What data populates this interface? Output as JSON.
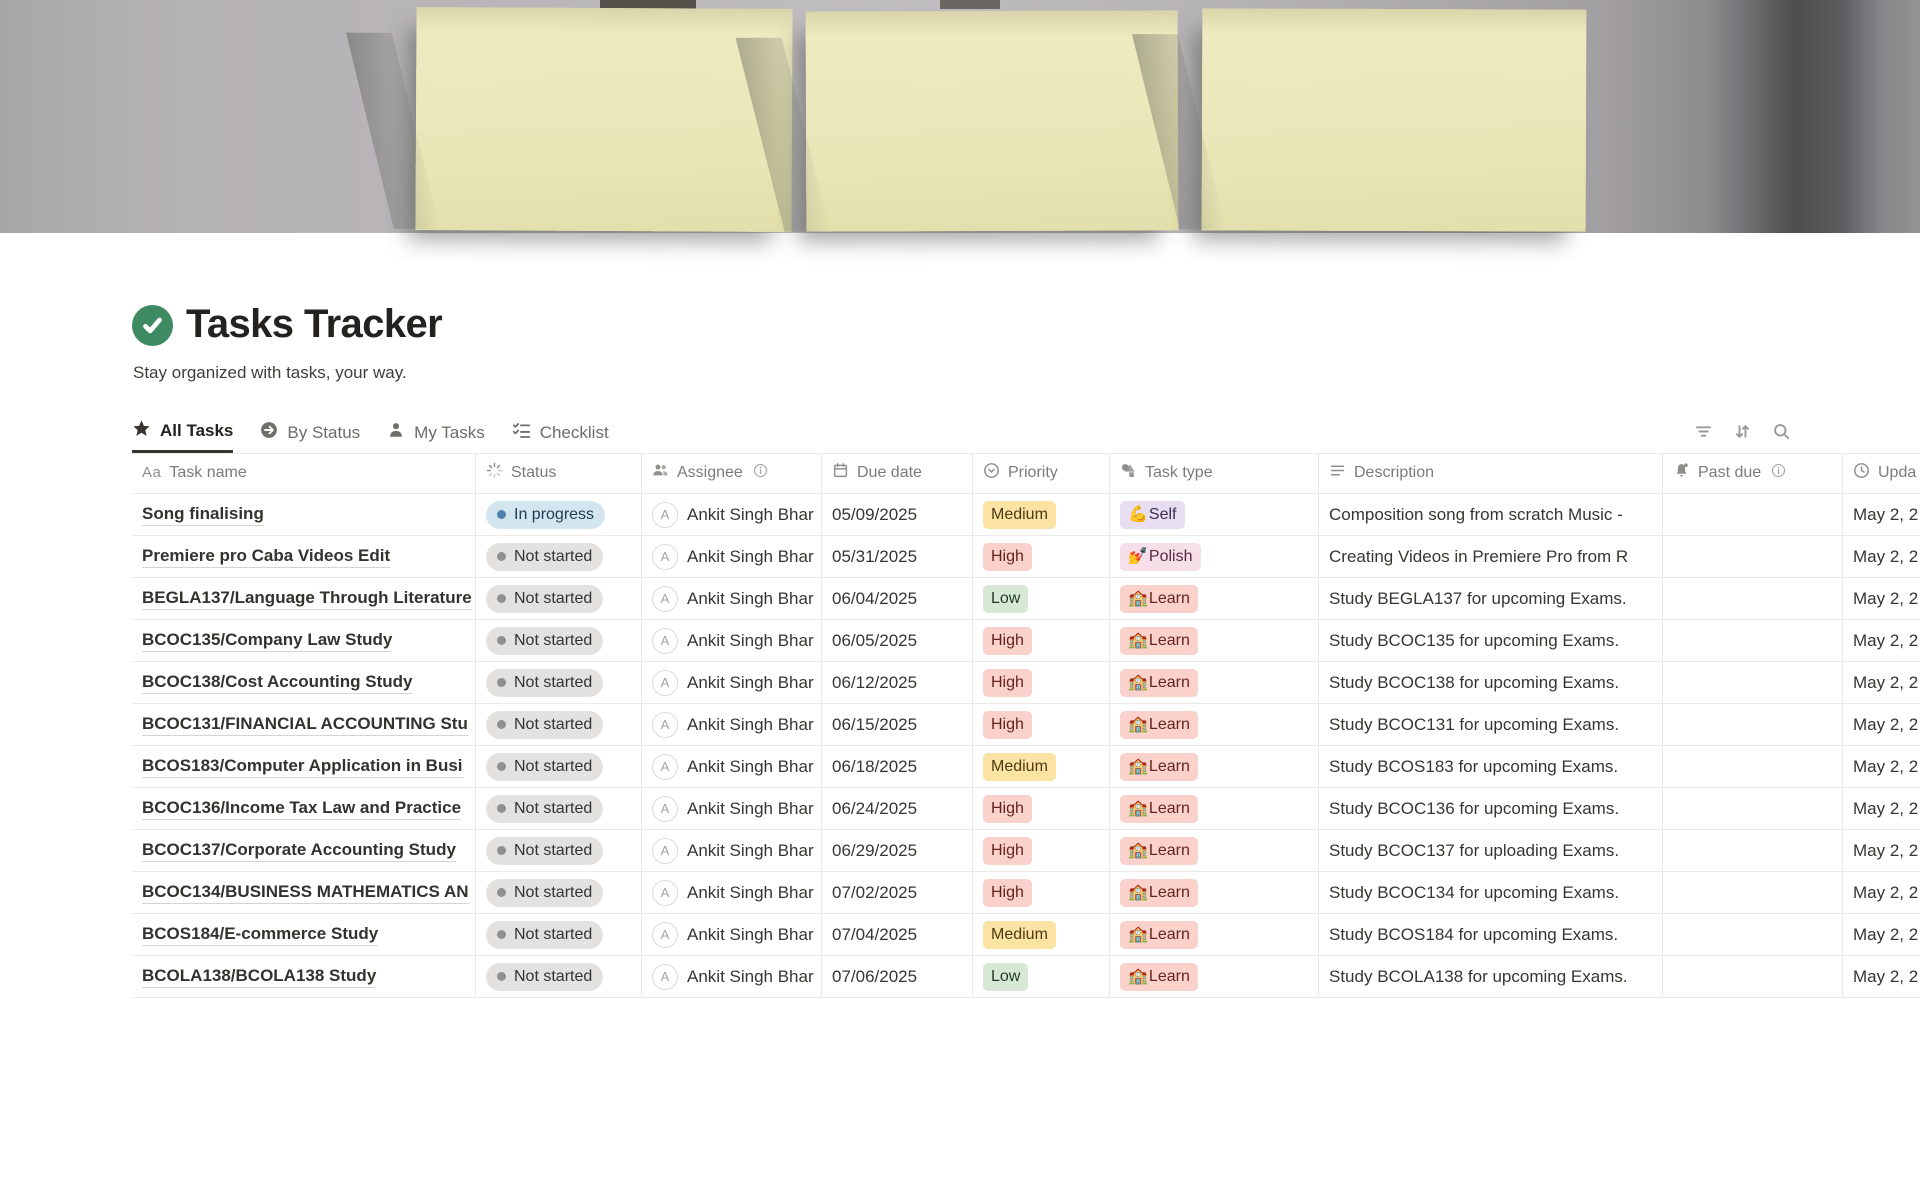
{
  "page": {
    "title": "Tasks Tracker",
    "subtitle": "Stay organized with tasks, your way.",
    "icon": "green-check-icon",
    "cover": "yellow-sticky-notes-photo"
  },
  "view_tabs": [
    {
      "label": "All Tasks",
      "icon": "star-icon",
      "active": true
    },
    {
      "label": "By Status",
      "icon": "arrow-circle-icon",
      "active": false
    },
    {
      "label": "My Tasks",
      "icon": "person-icon",
      "active": false
    },
    {
      "label": "Checklist",
      "icon": "checklist-icon",
      "active": false
    }
  ],
  "toolbar": {
    "icons": [
      "filter-icon",
      "sort-icon",
      "search-icon"
    ]
  },
  "table": {
    "columns": [
      {
        "id": "name",
        "label": "Task name",
        "icon": "aa-icon"
      },
      {
        "id": "status",
        "label": "Status",
        "icon": "status-spinner-icon"
      },
      {
        "id": "assignee",
        "label": "Assignee",
        "icon": "people-icon",
        "info": true
      },
      {
        "id": "due",
        "label": "Due date",
        "icon": "calendar-icon"
      },
      {
        "id": "priority",
        "label": "Priority",
        "icon": "select-circle-icon"
      },
      {
        "id": "type",
        "label": "Task type",
        "icon": "shapes-icon"
      },
      {
        "id": "description",
        "label": "Description",
        "icon": "text-lines-icon"
      },
      {
        "id": "past_due",
        "label": "Past due",
        "icon": "bell-icon",
        "info": true
      },
      {
        "id": "updated",
        "label": "Upda",
        "icon": "clock-icon"
      }
    ],
    "assignee_avatar_letter": "A",
    "rows": [
      {
        "name": "Song finalising",
        "status": "In progress",
        "assignee": "Ankit Singh Bhar",
        "due": "05/09/2025",
        "priority": "Medium",
        "type_emoji": "💪",
        "type": "Self",
        "description": "Composition song from scratch Music -",
        "past_due": "",
        "updated": "May 2, 2"
      },
      {
        "name": "Premiere pro Caba Videos Edit",
        "status": "Not started",
        "assignee": "Ankit Singh Bhar",
        "due": "05/31/2025",
        "priority": "High",
        "type_emoji": "💅",
        "type": "Polish",
        "description": "Creating Videos in Premiere Pro from R",
        "past_due": "",
        "updated": "May 2, 2"
      },
      {
        "name": "BEGLA137/Language Through Literature",
        "status": "Not started",
        "assignee": "Ankit Singh Bhar",
        "due": "06/04/2025",
        "priority": "Low",
        "type_emoji": "🏫",
        "type": "Learn",
        "description": "Study BEGLA137 for upcoming Exams.",
        "past_due": "",
        "updated": "May 2, 2"
      },
      {
        "name": "BCOC135/Company Law Study",
        "status": "Not started",
        "assignee": "Ankit Singh Bhar",
        "due": "06/05/2025",
        "priority": "High",
        "type_emoji": "🏫",
        "type": "Learn",
        "description": "Study BCOC135 for upcoming Exams.",
        "past_due": "",
        "updated": "May 2, 2"
      },
      {
        "name": "BCOC138/Cost Accounting Study",
        "status": "Not started",
        "assignee": "Ankit Singh Bhar",
        "due": "06/12/2025",
        "priority": "High",
        "type_emoji": "🏫",
        "type": "Learn",
        "description": "Study BCOC138 for upcoming Exams.",
        "past_due": "",
        "updated": "May 2, 2"
      },
      {
        "name": "BCOC131/FINANCIAL ACCOUNTING Stu",
        "status": "Not started",
        "assignee": "Ankit Singh Bhar",
        "due": "06/15/2025",
        "priority": "High",
        "type_emoji": "🏫",
        "type": "Learn",
        "description": "Study BCOC131 for upcoming Exams.",
        "past_due": "",
        "updated": "May 2, 2"
      },
      {
        "name": "BCOS183/Computer Application in Busi",
        "status": "Not started",
        "assignee": "Ankit Singh Bhar",
        "due": "06/18/2025",
        "priority": "Medium",
        "type_emoji": "🏫",
        "type": "Learn",
        "description": "Study BCOS183 for upcoming Exams.",
        "past_due": "",
        "updated": "May 2, 2"
      },
      {
        "name": "BCOC136/Income Tax Law and Practice",
        "status": "Not started",
        "assignee": "Ankit Singh Bhar",
        "due": "06/24/2025",
        "priority": "High",
        "type_emoji": "🏫",
        "type": "Learn",
        "description": "Study BCOC136 for upcoming Exams.",
        "past_due": "",
        "updated": "May 2, 2"
      },
      {
        "name": "BCOC137/Corporate Accounting Study",
        "status": "Not started",
        "assignee": "Ankit Singh Bhar",
        "due": "06/29/2025",
        "priority": "High",
        "type_emoji": "🏫",
        "type": "Learn",
        "description": "Study BCOC137 for uploading Exams.",
        "past_due": "",
        "updated": "May 2, 2"
      },
      {
        "name": "BCOC134/BUSINESS MATHEMATICS AN",
        "status": "Not started",
        "assignee": "Ankit Singh Bhar",
        "due": "07/02/2025",
        "priority": "High",
        "type_emoji": "🏫",
        "type": "Learn",
        "description": "Study BCOC134 for upcoming Exams.",
        "past_due": "",
        "updated": "May 2, 2"
      },
      {
        "name": "BCOS184/E-commerce Study",
        "status": "Not started",
        "assignee": "Ankit Singh Bhar",
        "due": "07/04/2025",
        "priority": "Medium",
        "type_emoji": "🏫",
        "type": "Learn",
        "description": "Study BCOS184 for upcoming Exams.",
        "past_due": "",
        "updated": "May 2, 2"
      },
      {
        "name": "BCOLA138/BCOLA138 Study",
        "status": "Not started",
        "assignee": "Ankit Singh Bhar",
        "due": "07/06/2025",
        "priority": "Low",
        "type_emoji": "🏫",
        "type": "Learn",
        "description": "Study BCOLA138 for upcoming Exams.",
        "past_due": "",
        "updated": "May 2, 2"
      }
    ]
  },
  "colors": {
    "page_icon_green": "#3e8a63",
    "status_in_progress_bg": "#d3e5ef",
    "status_in_progress_dot": "#5083ac",
    "status_not_started_bg": "#e3e2e0",
    "status_not_started_dot": "#90908c",
    "priority_high_bg": "#fad2cb",
    "priority_medium_bg": "#fbe3a3",
    "priority_low_bg": "#d7e9d4",
    "type_self_bg": "#e7def2",
    "type_polish_bg": "#f6dfe9",
    "type_learn_bg": "#fad2cb",
    "active_tab_underline": "#37352f",
    "divider": "#ebeae8"
  }
}
